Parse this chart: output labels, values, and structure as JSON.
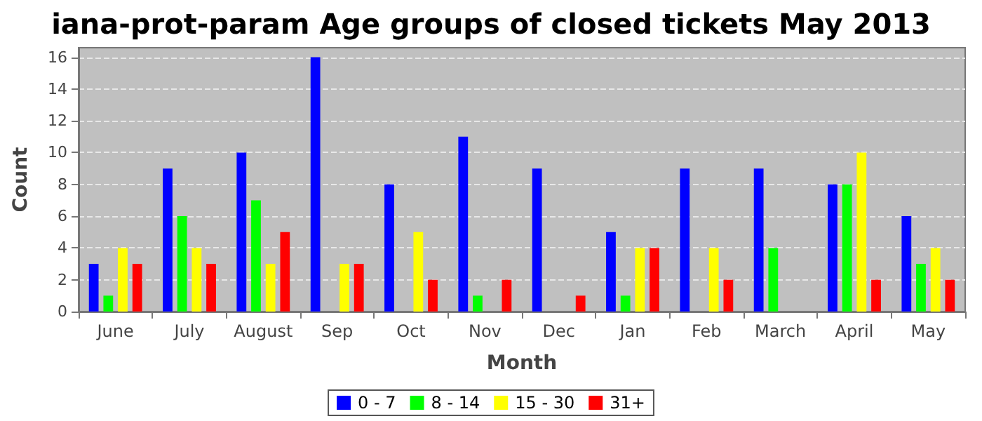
{
  "chart_data": {
    "type": "bar",
    "title": "iana-prot-param Age groups of closed tickets May 2013",
    "xlabel": "Month",
    "ylabel": "Count",
    "categories": [
      "June",
      "July",
      "August",
      "Sep",
      "Oct",
      "Nov",
      "Dec",
      "Jan",
      "Feb",
      "March",
      "April",
      "May"
    ],
    "series": [
      {
        "name": "0 - 7",
        "color": "#0000ff",
        "values": [
          3,
          9,
          10,
          16,
          8,
          11,
          9,
          5,
          9,
          9,
          8,
          6
        ]
      },
      {
        "name": "8 - 14",
        "color": "#00ff00",
        "values": [
          1,
          6,
          7,
          0,
          0,
          1,
          0,
          1,
          0,
          4,
          8,
          3
        ]
      },
      {
        "name": "15 - 30",
        "color": "#ffff00",
        "values": [
          4,
          4,
          3,
          3,
          5,
          0,
          0,
          4,
          4,
          0,
          10,
          4
        ]
      },
      {
        "name": "31+",
        "color": "#ff0000",
        "values": [
          3,
          3,
          5,
          3,
          2,
          2,
          1,
          4,
          2,
          0,
          2,
          2
        ]
      }
    ],
    "ylim": [
      0,
      16.6
    ],
    "yticks": [
      0,
      2,
      4,
      6,
      8,
      10,
      12,
      14,
      16
    ],
    "grid": "y",
    "legend": "bottom"
  }
}
